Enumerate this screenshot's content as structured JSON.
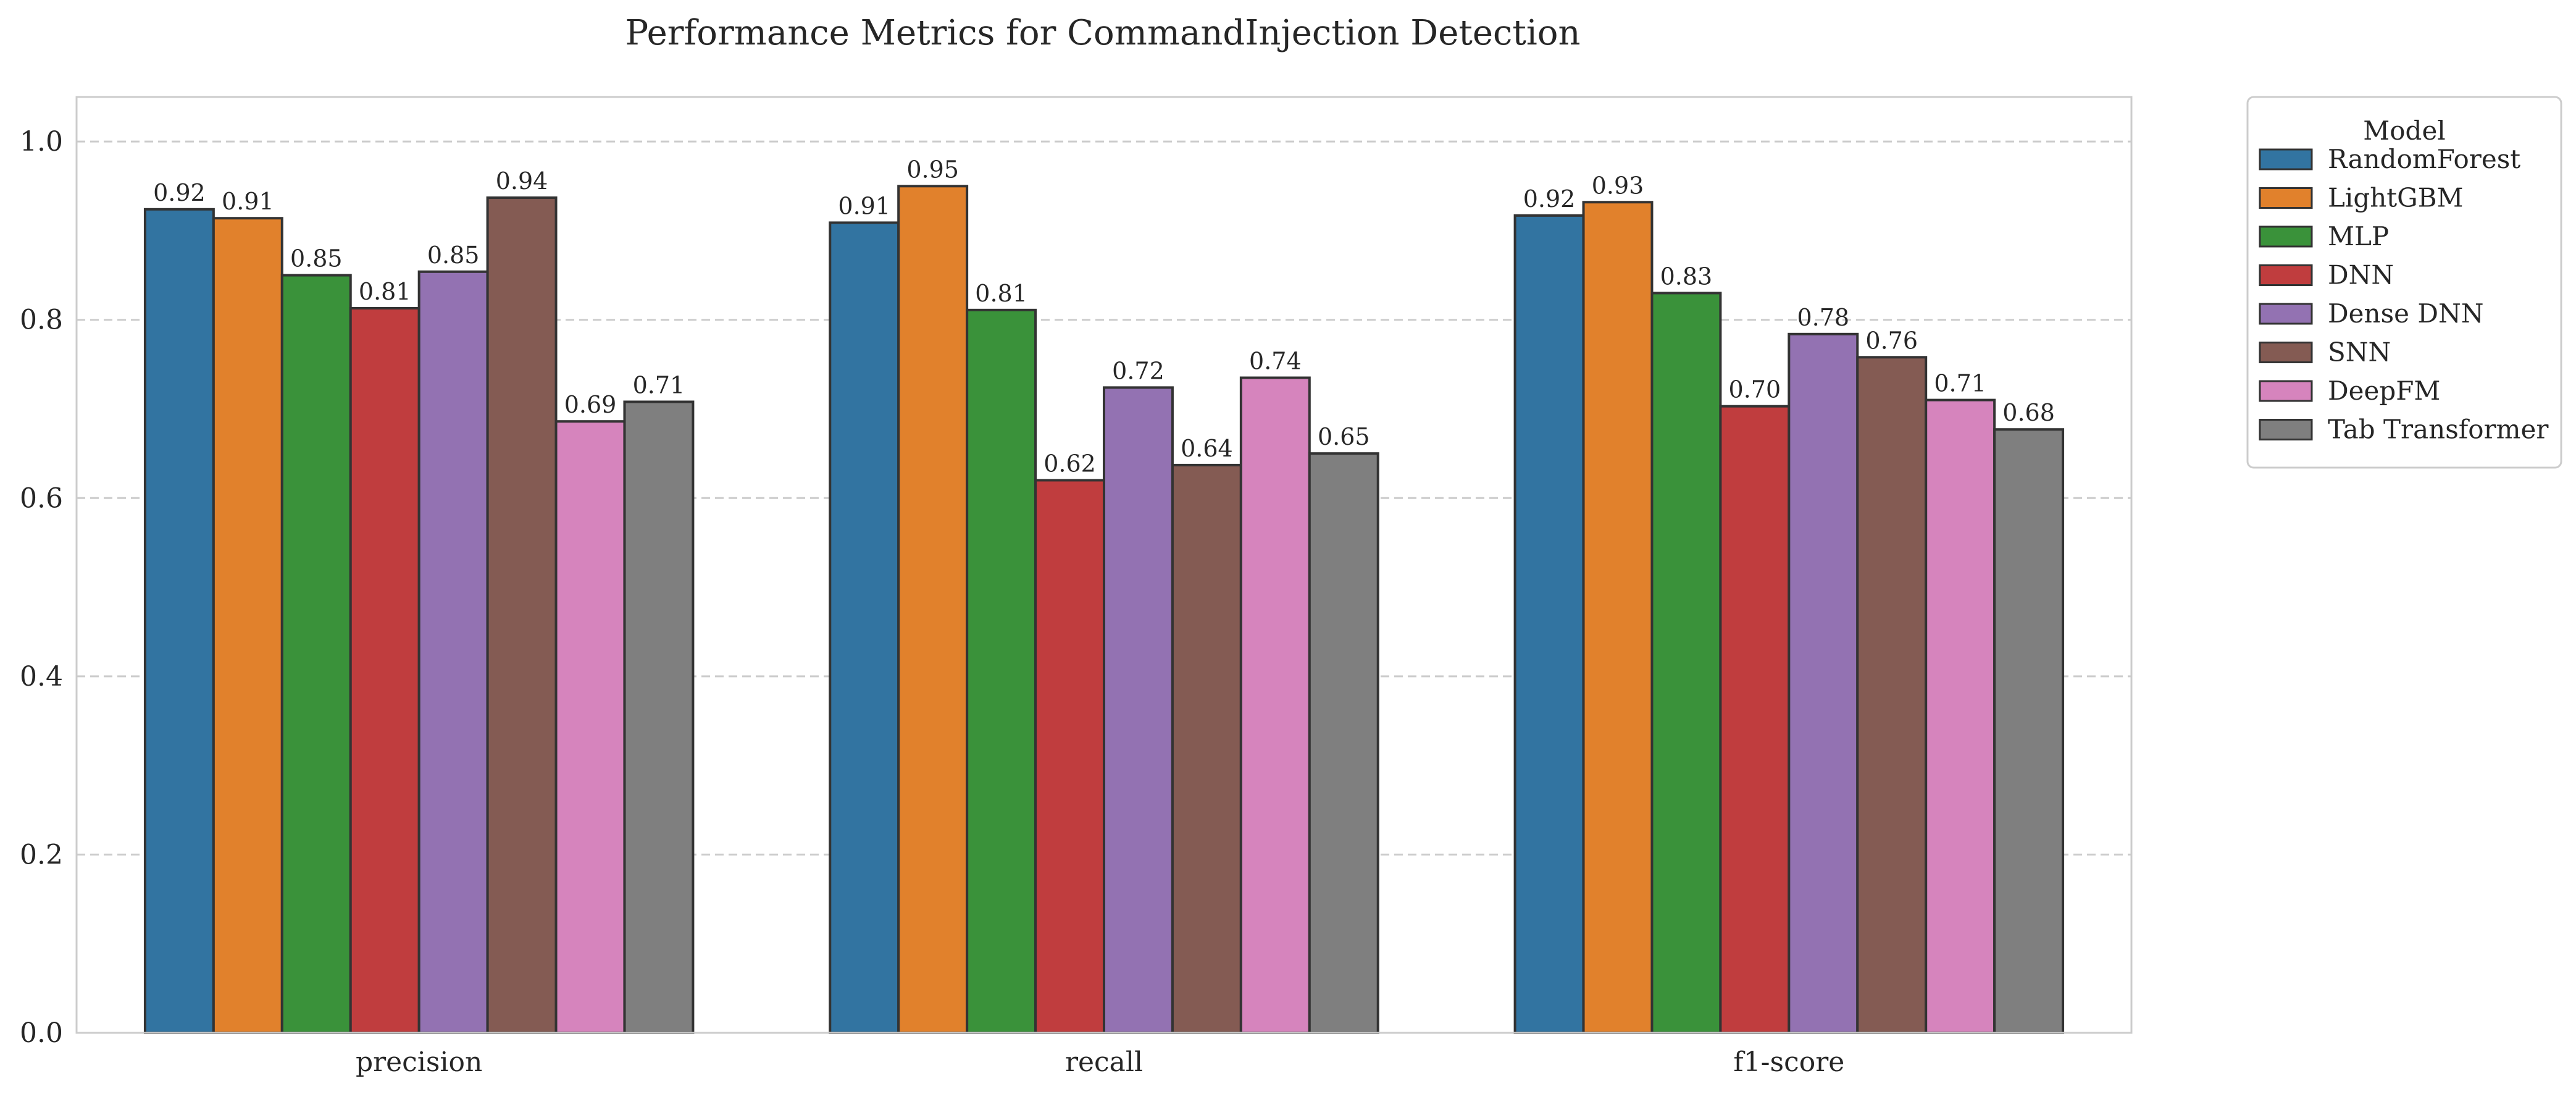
{
  "chart_data": {
    "type": "bar",
    "title": "Performance Metrics for CommandInjection Detection",
    "xlabel": "",
    "ylabel": "",
    "categories": [
      "precision",
      "recall",
      "f1-score"
    ],
    "ylim": [
      0,
      1.05
    ],
    "yticks": [
      "0.0",
      "0.2",
      "0.4",
      "0.6",
      "0.8",
      "1.0"
    ],
    "grid": "y-dashed",
    "legend": {
      "title": "Model",
      "placement": "outside-top-right"
    },
    "series": [
      {
        "name": "RandomForest",
        "color": "#3274a1",
        "values": [
          0.924,
          0.909,
          0.917
        ],
        "labels": [
          "0.92",
          "0.91",
          "0.92"
        ]
      },
      {
        "name": "LightGBM",
        "color": "#e1812c",
        "values": [
          0.914,
          0.95,
          0.932
        ],
        "labels": [
          "0.91",
          "0.95",
          "0.93"
        ]
      },
      {
        "name": "MLP",
        "color": "#3a923a",
        "values": [
          0.85,
          0.811,
          0.83
        ],
        "labels": [
          "0.85",
          "0.81",
          "0.83"
        ]
      },
      {
        "name": "DNN",
        "color": "#c03d3e",
        "values": [
          0.813,
          0.62,
          0.703
        ],
        "labels": [
          "0.81",
          "0.62",
          "0.70"
        ]
      },
      {
        "name": "Dense DNN",
        "color": "#9372b2",
        "values": [
          0.854,
          0.724,
          0.784
        ],
        "labels": [
          "0.85",
          "0.72",
          "0.78"
        ]
      },
      {
        "name": "SNN",
        "color": "#845b53",
        "values": [
          0.937,
          0.637,
          0.758
        ],
        "labels": [
          "0.94",
          "0.64",
          "0.76"
        ]
      },
      {
        "name": "DeepFM",
        "color": "#d684bd",
        "values": [
          0.686,
          0.735,
          0.71
        ],
        "labels": [
          "0.69",
          "0.74",
          "0.71"
        ]
      },
      {
        "name": "Tab Transformer",
        "color": "#7f7f7f",
        "values": [
          0.708,
          0.65,
          0.677
        ],
        "labels": [
          "0.71",
          "0.65",
          "0.68"
        ]
      }
    ]
  }
}
